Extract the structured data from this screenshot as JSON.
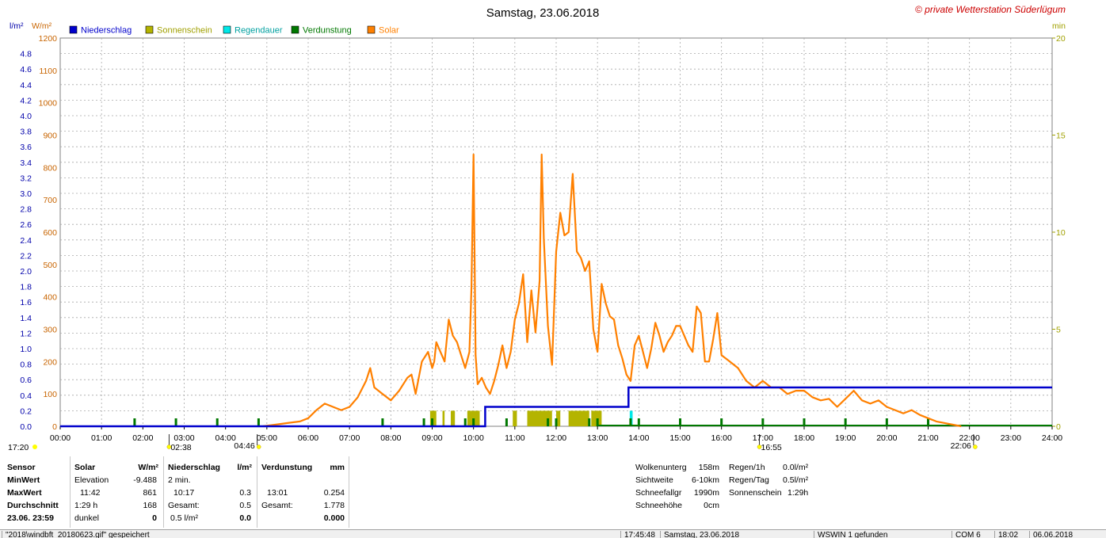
{
  "title": "Samstag, 23.06.2018",
  "copyright": "© private Wetterstation Süderlügum",
  "axis_units": {
    "left_rain": "l/m²",
    "left_solar": "W/m²",
    "right_min": "min"
  },
  "legend": [
    {
      "label": "Niederschlag",
      "color": "#0000cc"
    },
    {
      "label": "Sonnenschein",
      "color": "#b4b400"
    },
    {
      "label": "Regendauer",
      "color": "#00e8e8"
    },
    {
      "label": "Verdunstung",
      "color": "#007800"
    },
    {
      "label": "Solar",
      "color": "#ff8000"
    }
  ],
  "colors": {
    "rain": "#0000cc",
    "sun": "#b4b400",
    "raindur": "#00e8e8",
    "evap": "#007800",
    "solar": "#ff8000",
    "solar_axis": "#c86400",
    "right_axis": "#a0a000",
    "sun_icon": "#ffff00"
  },
  "chart_data": {
    "type": "line",
    "x_ticks": [
      "00:00",
      "01:00",
      "02:00",
      "03:00",
      "04:00",
      "05:00",
      "06:00",
      "07:00",
      "08:00",
      "09:00",
      "10:00",
      "11:00",
      "12:00",
      "13:00",
      "14:00",
      "15:00",
      "16:00",
      "17:00",
      "18:00",
      "19:00",
      "20:00",
      "21:00",
      "22:00",
      "23:00",
      "24:00"
    ],
    "xlim_hours": [
      0,
      24
    ],
    "y_rain_ticks": [
      "4.8",
      "4.6",
      "4.4",
      "4.2",
      "4.0",
      "3.8",
      "3.6",
      "3.4",
      "3.2",
      "3.0",
      "2.8",
      "2.6",
      "2.4",
      "2.2",
      "2.0",
      "1.8",
      "1.6",
      "1.4",
      "1.2",
      "1.0",
      "0.8",
      "0.6",
      "0.4",
      "0.2",
      "0.0"
    ],
    "y_rain_lim": [
      0,
      5.0
    ],
    "y_solar_ticks": [
      "1200",
      "1100",
      "1000",
      "900",
      "800",
      "700",
      "600",
      "500",
      "400",
      "300",
      "200",
      "100",
      "0"
    ],
    "y_solar_lim": [
      0,
      1200
    ],
    "y_min_ticks": [
      "20",
      "15",
      "10",
      "5",
      "0"
    ],
    "y_min_lim": [
      0,
      20
    ],
    "grid": true,
    "sun_markers": [
      {
        "label": "17:20",
        "side": "left"
      },
      {
        "label": "02:38",
        "hour": 2.633
      },
      {
        "label": "04:46",
        "hour": 4.767
      },
      {
        "label": "16:55",
        "hour": 16.917
      },
      {
        "label": "22:06",
        "hour": 22.1
      }
    ],
    "series": [
      {
        "name": "Solar",
        "unit": "W/m²",
        "x": [
          4.9,
          5.2,
          5.5,
          5.8,
          6.0,
          6.2,
          6.4,
          6.6,
          6.8,
          7.0,
          7.2,
          7.4,
          7.5,
          7.6,
          7.8,
          8.0,
          8.2,
          8.4,
          8.5,
          8.6,
          8.75,
          8.9,
          9.0,
          9.05,
          9.1,
          9.2,
          9.3,
          9.4,
          9.5,
          9.6,
          9.7,
          9.8,
          9.9,
          9.95,
          10.0,
          10.05,
          10.1,
          10.2,
          10.3,
          10.4,
          10.5,
          10.6,
          10.7,
          10.8,
          10.9,
          11.0,
          11.1,
          11.2,
          11.3,
          11.4,
          11.5,
          11.6,
          11.65,
          11.7,
          11.8,
          11.9,
          12.0,
          12.1,
          12.2,
          12.3,
          12.4,
          12.5,
          12.6,
          12.7,
          12.8,
          12.9,
          13.0,
          13.1,
          13.2,
          13.3,
          13.4,
          13.5,
          13.6,
          13.7,
          13.8,
          13.9,
          14.0,
          14.1,
          14.2,
          14.3,
          14.4,
          14.5,
          14.6,
          14.7,
          14.8,
          14.9,
          15.0,
          15.1,
          15.2,
          15.3,
          15.4,
          15.5,
          15.6,
          15.7,
          15.8,
          15.9,
          16.0,
          16.2,
          16.4,
          16.6,
          16.8,
          17.0,
          17.2,
          17.4,
          17.6,
          17.8,
          18.0,
          18.2,
          18.4,
          18.6,
          18.8,
          19.0,
          19.2,
          19.4,
          19.6,
          19.8,
          20.0,
          20.2,
          20.4,
          20.6,
          20.8,
          21.0,
          21.2,
          21.4,
          21.6,
          21.8
        ],
        "values": [
          0,
          5,
          10,
          15,
          25,
          50,
          70,
          60,
          50,
          60,
          90,
          140,
          180,
          120,
          100,
          80,
          110,
          150,
          160,
          100,
          200,
          230,
          180,
          200,
          260,
          230,
          200,
          330,
          280,
          260,
          220,
          180,
          230,
          430,
          840,
          220,
          130,
          150,
          120,
          100,
          140,
          190,
          250,
          180,
          230,
          330,
          380,
          470,
          260,
          420,
          290,
          450,
          840,
          580,
          310,
          190,
          540,
          660,
          590,
          600,
          780,
          540,
          520,
          480,
          510,
          300,
          230,
          440,
          380,
          340,
          330,
          250,
          210,
          160,
          140,
          250,
          280,
          230,
          180,
          240,
          320,
          280,
          230,
          260,
          280,
          310,
          310,
          280,
          250,
          230,
          370,
          350,
          200,
          200,
          270,
          350,
          220,
          200,
          180,
          140,
          120,
          140,
          120,
          120,
          100,
          110,
          110,
          90,
          80,
          85,
          60,
          85,
          110,
          80,
          70,
          80,
          60,
          50,
          40,
          50,
          35,
          25,
          15,
          10,
          5,
          0
        ]
      },
      {
        "name": "Niederschlag",
        "unit": "l/m²",
        "x": [
          0,
          10.283,
          10.283,
          13.75,
          13.75,
          24
        ],
        "values": [
          0.0,
          0.0,
          0.25,
          0.25,
          0.5,
          0.5
        ]
      },
      {
        "name": "Sonnenschein",
        "unit": "min",
        "bars": [
          [
            8.95,
            9.1
          ],
          [
            9.25,
            9.3
          ],
          [
            9.45,
            9.55
          ],
          [
            9.85,
            10.15
          ],
          [
            10.95,
            11.05
          ],
          [
            11.3,
            11.9
          ],
          [
            12.0,
            12.1
          ],
          [
            12.3,
            12.8
          ],
          [
            12.85,
            13.1
          ]
        ],
        "value_min": 0.8
      },
      {
        "name": "Regendauer",
        "unit": "min",
        "bars": [
          [
            13.78,
            13.85
          ]
        ],
        "value_min": 0.8
      },
      {
        "name": "Verdunstung",
        "unit": "mm",
        "ticks_x": [
          1.8,
          2.8,
          3.8,
          4.8,
          7.8,
          8.8,
          9.0,
          9.8,
          10.0,
          10.8,
          11.8,
          12.0,
          12.8,
          13.0,
          13.8,
          14.0,
          15.0,
          16.0,
          17.0,
          18.0,
          19.0,
          20.0,
          21.0
        ]
      }
    ]
  },
  "summary": {
    "sensor": {
      "header": "Sensor",
      "minwert": "MinWert",
      "maxwert": "MaxWert",
      "durchschnitt": "Durchschnitt",
      "datetime": "23.06. 23:59"
    },
    "solar": {
      "header": "Solar",
      "unit": "W/m²",
      "row1_label": "Elevation",
      "row1_value": "-9.488",
      "row2_label": "11:42",
      "row2_value": "861",
      "row3_label": "1:29 h",
      "row3_value": "168",
      "row4_label": "dunkel",
      "row4_value": "0"
    },
    "niederschlag": {
      "header": "Niederschlag",
      "unit": "l/m²",
      "row1_label": "2 min.",
      "row2_label": "10:17",
      "row2_value": "0.3",
      "row3_label": "Gesamt:",
      "row3_value": "0.5",
      "row4_label": "0.5 l/m²",
      "row4_value": "0.0"
    },
    "verdunstung": {
      "header": "Verdunstung",
      "unit": "mm",
      "row2_label": "13:01",
      "row2_value": "0.254",
      "row3_label": "Gesamt:",
      "row3_value": "1.778",
      "row4_value": "0.000"
    },
    "weather": {
      "wolkenunterg_label": "Wolkenunterg",
      "wolkenunterg": "158m",
      "sichtweite_label": "Sichtweite",
      "sichtweite": "6-10km",
      "schneefallgr_label": "Schneefallgr",
      "schneefallgr": "1990m",
      "schneehoehe_label": "Schneehöhe",
      "schneehoehe": "0cm"
    },
    "regen": {
      "regen1h_label": "Regen/1h",
      "regen1h": "0.0l/m²",
      "regentag_label": "Regen/Tag",
      "regentag": "0.5l/m²",
      "sonnenschein_label": "Sonnenschein",
      "sonnenschein": "1:29h"
    }
  },
  "statusbar": {
    "file": "\"2018\\windbft_20180623.gif\"  gespeichert",
    "time": "17:45:48",
    "date": "Samstag, 23.06.2018",
    "wswin": "WSWIN 1 gefunden",
    "com": "COM 6",
    "clock": "18:02",
    "curdate": "06.06.2018"
  }
}
